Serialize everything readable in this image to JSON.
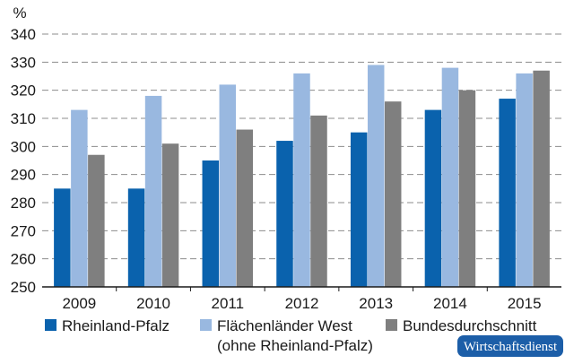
{
  "chart_data": {
    "type": "bar",
    "ylabel": "%",
    "ylim": [
      250,
      340
    ],
    "ytick_step": 10,
    "categories": [
      "2009",
      "2010",
      "2011",
      "2012",
      "2013",
      "2014",
      "2015"
    ],
    "series": [
      {
        "name": "Rheinland-Pfalz",
        "color": "#0a62ad",
        "values": [
          285,
          285,
          295,
          302,
          305,
          313,
          317
        ]
      },
      {
        "name": "Flächenländer West",
        "name_line2": "(ohne Rheinland-Pfalz)",
        "color": "#99b8e0",
        "values": [
          313,
          318,
          322,
          326,
          329,
          328,
          326
        ]
      },
      {
        "name": "Bundesdurchschnitt",
        "color": "#7f7f7f",
        "values": [
          297,
          301,
          306,
          311,
          316,
          320,
          327
        ]
      }
    ],
    "grid": true,
    "legend_position": "bottom"
  },
  "brand": {
    "label": "Wirtschaftsdienst",
    "color": "#1c5ea8"
  }
}
